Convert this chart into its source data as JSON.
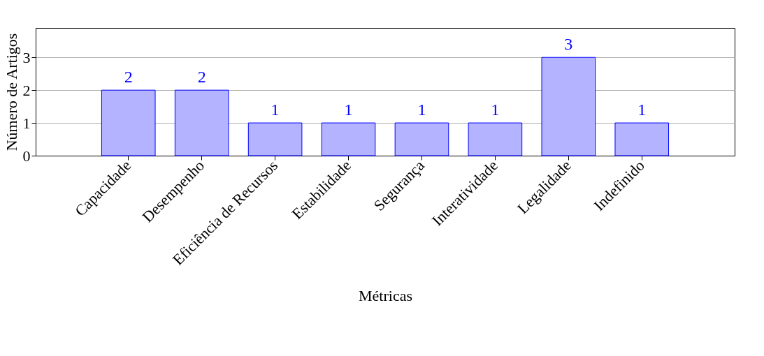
{
  "chart_data": {
    "type": "bar",
    "xlabel": "Métricas",
    "ylabel": "Número de Artigos",
    "categories": [
      "Capacidade",
      "Desempenho",
      "Eficiência de Recursos",
      "Estabilidade",
      "Segurança",
      "Interatividade",
      "Legalidade",
      "Indefinido"
    ],
    "values": [
      2,
      2,
      1,
      1,
      1,
      1,
      3,
      1
    ],
    "color": "#b3b3ff",
    "ylim": [
      0,
      3.9
    ],
    "yticks": [
      0,
      1,
      2,
      3
    ],
    "grid": "y",
    "data_labels": true
  }
}
